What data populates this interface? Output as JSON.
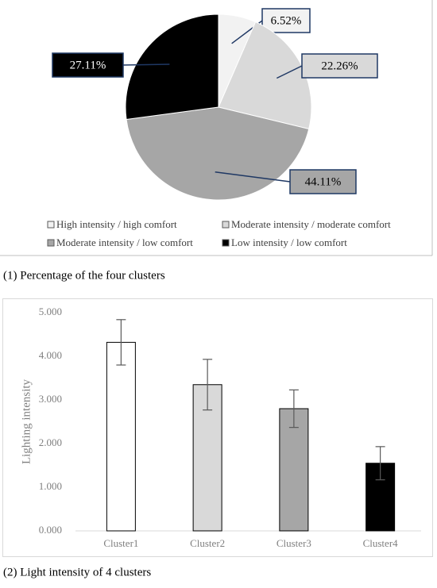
{
  "chart_data": [
    {
      "type": "pie",
      "labels": [
        "High intensity / high comfort",
        "Moderate intensity / moderate comfort",
        "Moderate intensity / low comfort",
        "Low intensity / low comfort"
      ],
      "values": [
        6.52,
        22.26,
        44.11,
        27.11
      ],
      "value_labels": [
        "6.52%",
        "22.26%",
        "44.11%",
        "27.11%"
      ],
      "colors": [
        "#f2f2f2",
        "#d9d9d9",
        "#a6a6a6",
        "#000000"
      ],
      "caption": "(1) Percentage of the four clusters"
    },
    {
      "type": "bar",
      "categories": [
        "Cluster1",
        "Cluster2",
        "Cluster3",
        "Cluster4"
      ],
      "values": [
        4.32,
        3.35,
        2.8,
        1.55
      ],
      "errors": [
        0.52,
        0.58,
        0.43,
        0.38
      ],
      "colors": [
        "#ffffff",
        "#d9d9d9",
        "#a6a6a6",
        "#000000"
      ],
      "ylabel": "Lighting intensity",
      "ylim": [
        0,
        5
      ],
      "yticks": [
        {
          "value": 0,
          "label": "0.000"
        },
        {
          "value": 1,
          "label": "1.000"
        },
        {
          "value": 2,
          "label": "2.000"
        },
        {
          "value": 3,
          "label": "3.000"
        },
        {
          "value": 4,
          "label": "4.000"
        },
        {
          "value": 5,
          "label": "5.000"
        }
      ],
      "grid": false,
      "caption": "(2) Light intensity of 4 clusters"
    }
  ]
}
